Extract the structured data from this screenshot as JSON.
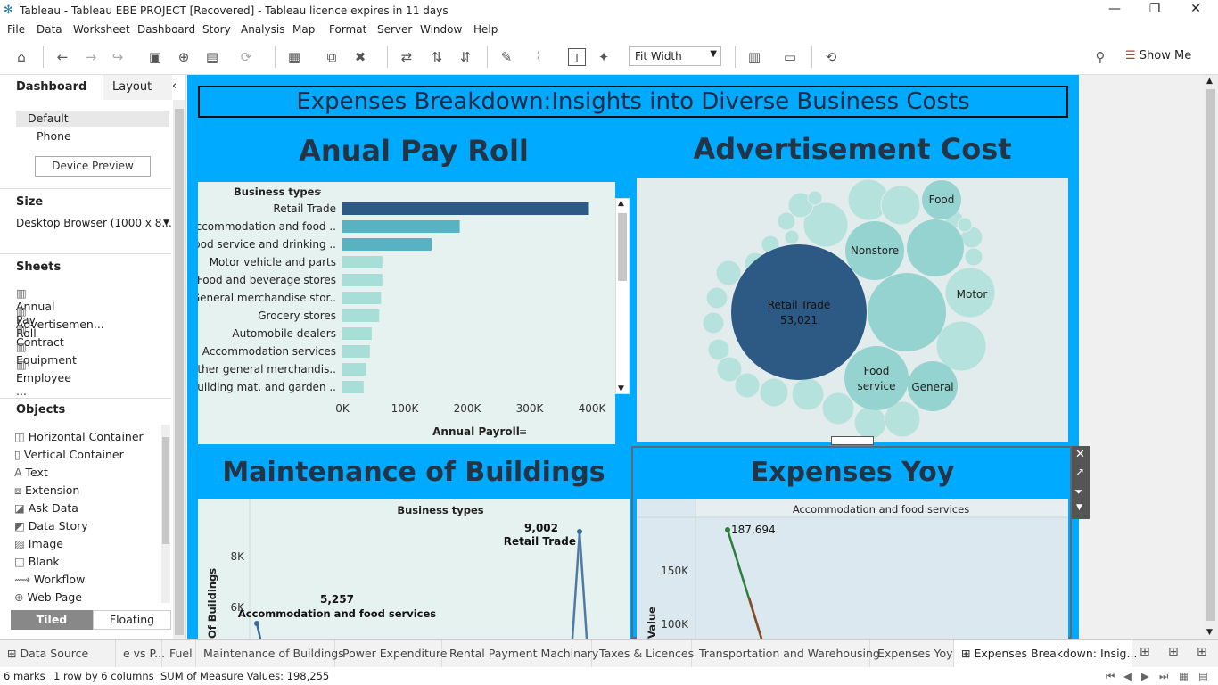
{
  "window": {
    "title": "Tableau - Tableau EBE PROJECT [Recovered] - Tableau licence expires in 11 days"
  },
  "menu": [
    "File",
    "Data",
    "Worksheet",
    "Dashboard",
    "Story",
    "Analysis",
    "Map",
    "Format",
    "Server",
    "Window",
    "Help"
  ],
  "toolbar": {
    "fit": "Fit Width",
    "show_me": "Show Me"
  },
  "left": {
    "tab_dashboard": "Dashboard",
    "tab_layout": "Layout",
    "devices": [
      "Default",
      "Phone"
    ],
    "device_preview": "Device Preview",
    "size_title": "Size",
    "size_value": "Desktop Browser (1000 x 8...",
    "sheets_title": "Sheets",
    "sheets": [
      "Annual Pay Roll",
      "Advertisemen...",
      "Contract ...",
      "Equipment ...",
      "Employee ..."
    ],
    "objects_title": "Objects",
    "objects": [
      "Horizontal Container",
      "Vertical Container",
      "Text",
      "Extension",
      "Ask Data",
      "Data Story",
      "Image",
      "Blank",
      "Workflow",
      "Web Page"
    ],
    "tiled": "Tiled",
    "floating": "Floating"
  },
  "dashboard": {
    "title": "Expenses Breakdown:Insights into Diverse Business Costs",
    "h_payroll": "Anual Pay Roll",
    "h_advert": "Advertisement Cost",
    "h_maint": "Maintenance of Buildings",
    "h_yoy": "Expenses Yoy",
    "payroll_header": "Business types",
    "payroll_xlabel": "Annual Payroll",
    "maint_header": "Business types",
    "maint_ylabel": "Of Buildings",
    "maint_ann1_val": "9,002",
    "maint_ann1_name": "Retail Trade",
    "maint_ann2_val": "5,257",
    "maint_ann2_name": "Accommodation and food services",
    "yoy_header": "Accommodation and food services",
    "yoy_ylabel": "Value",
    "yoy_ann": "187,694",
    "bubble_big_name": "Retail Trade",
    "bubble_big_val": "53,021",
    "bubble_labels": [
      "Nonstore",
      "Food",
      "Motor",
      "Food",
      "service",
      "General"
    ]
  },
  "chart_data": [
    {
      "type": "bar",
      "title": "Anual Pay Roll",
      "xlabel": "Annual Payroll",
      "ylabel": "Business types",
      "categories": [
        "Retail Trade",
        "Accommodation and food ..",
        "Food service and drinking ..",
        "Motor vehicle and parts",
        "Food and beverage stores",
        "General merchandise stor..",
        "Grocery stores",
        "Automobile dealers",
        "Accommodation services",
        "Other general merchandis..",
        "Building mat. and garden .."
      ],
      "values": [
        395000,
        188000,
        143000,
        64000,
        64000,
        62000,
        59000,
        47000,
        44000,
        38000,
        34000
      ],
      "xticks": [
        "0K",
        "100K",
        "200K",
        "300K",
        "400K"
      ],
      "xlim": [
        0,
        420000
      ]
    },
    {
      "type": "line",
      "title": "Maintenance of Buildings",
      "ylabel": "Of Buildings",
      "yticks": [
        "8K",
        "6K"
      ]
    },
    {
      "type": "line",
      "title": "Expenses Yoy",
      "ylabel": "Value",
      "yticks": [
        "150K",
        "100K"
      ]
    }
  ],
  "tabs": [
    "Data Source",
    "e vs P...",
    "Fuel",
    "Maintenance of Buildings",
    "Power Expenditure",
    "Rental Payment Machinary",
    "Taxes & Licences",
    "Transportation and Warehousing",
    "Expenses Yoy",
    "Expenses Breakdown: Insig..."
  ],
  "status": {
    "marks": "6 marks",
    "rows": "1 row  by  6 columns",
    "sum": "SUM of Measure Values: 198,255"
  }
}
